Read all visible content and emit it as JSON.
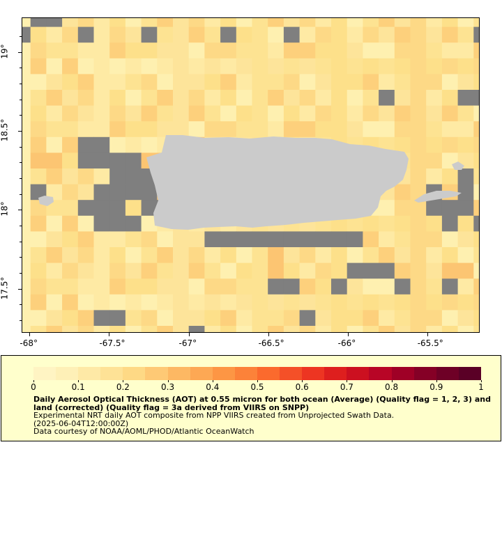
{
  "map": {
    "lon_range": [
      -68.05,
      -65.17
    ],
    "lat_range": [
      17.22,
      19.22
    ],
    "x_ticks": [
      {
        "value": -68,
        "label": "-68°"
      },
      {
        "value": -67.5,
        "label": "-67.5°"
      },
      {
        "value": -67,
        "label": "-67°"
      },
      {
        "value": -66.5,
        "label": "-66.5°"
      },
      {
        "value": -66,
        "label": "-66°"
      },
      {
        "value": -65.5,
        "label": "-65.5°"
      }
    ],
    "y_ticks": [
      {
        "value": 19,
        "label": "19°"
      },
      {
        "value": 18.5,
        "label": "18.5°"
      },
      {
        "value": 18,
        "label": "18°"
      },
      {
        "value": 17.5,
        "label": "17.5°"
      }
    ],
    "colors": {
      "missing": "#7f7f7f",
      "land": "#cbcbcb",
      "background": "#fde7a4"
    }
  },
  "colorbar": {
    "range": [
      0,
      1
    ],
    "ticks": [
      "0",
      "0.1",
      "0.2",
      "0.3",
      "0.4",
      "0.5",
      "0.6",
      "0.7",
      "0.8",
      "0.9",
      "1"
    ],
    "colors": [
      "#fff4c3",
      "#fef0b7",
      "#fee9a6",
      "#fee296",
      "#fed985",
      "#fec975",
      "#fdb863",
      "#fda854",
      "#fd9644",
      "#fc8239",
      "#fb6a2d",
      "#f45028",
      "#ed3522",
      "#de1f1e",
      "#cc1020",
      "#b80526",
      "#9f0026",
      "#850026",
      "#6e0026",
      "#5a0026"
    ]
  },
  "legend": {
    "title": "Daily Aerosol Optical Thickness (AOT) at 0.55 micron for both ocean (Average) (Quality flag = 1, 2, 3) and land (corrected) (Quality flag = 3a derived from VIIRS on SNPP)",
    "line1": "Experimental NRT daily AOT composite from NPP VIIRS created from Unprojected Swath Data.",
    "line2": "(2025-06-04T12:00:00Z)",
    "line3": "Data courtesy of NOAA/AOML/PHOD/Atlantic OceanWatch"
  }
}
